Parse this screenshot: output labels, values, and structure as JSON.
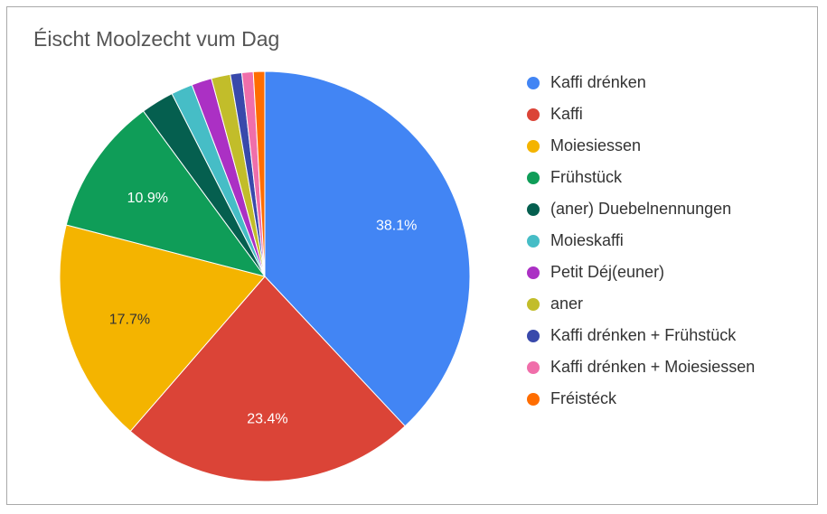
{
  "chart_data": {
    "type": "pie",
    "title": "Éischt Moolzecht vum Dag",
    "legend_position": "right",
    "slices": [
      {
        "label": "Kaffi drénken",
        "value": 38.1,
        "color": "#4285f4",
        "data_label": "38.1%"
      },
      {
        "label": "Kaffi",
        "value": 23.4,
        "color": "#db4437",
        "data_label": "23.4%"
      },
      {
        "label": "Moiesiessen",
        "value": 17.7,
        "color": "#f4b400",
        "data_label": "17.7%"
      },
      {
        "label": "Frühstück",
        "value": 10.9,
        "color": "#0f9d58",
        "data_label": "10.9%"
      },
      {
        "label": "(aner) Duebelnennungen",
        "value": 2.6,
        "color": "#055f4f",
        "data_label": ""
      },
      {
        "label": "Moieskaffi",
        "value": 1.7,
        "color": "#46bdc6",
        "data_label": ""
      },
      {
        "label": "Petit Déj(euner)",
        "value": 1.6,
        "color": "#ab30c4",
        "data_label": ""
      },
      {
        "label": "aner",
        "value": 1.5,
        "color": "#c2bd2a",
        "data_label": ""
      },
      {
        "label": "Kaffi drénken + Frühstück",
        "value": 0.9,
        "color": "#3949ab",
        "data_label": ""
      },
      {
        "label": "Kaffi drénken + Moiesiessen",
        "value": 0.9,
        "color": "#f06eaa",
        "data_label": ""
      },
      {
        "label": "Fréistéck",
        "value": 0.9,
        "color": "#ff6d00",
        "data_label": ""
      }
    ]
  }
}
